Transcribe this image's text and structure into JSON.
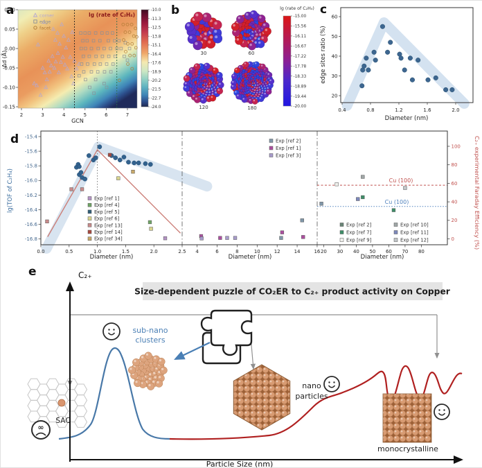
{
  "panel_a": {
    "label": "a",
    "title": "lg (rate of C₂H₄)",
    "xlabel": "GCN",
    "ylabel": "Δd (Å)",
    "xticks": [
      "2",
      "3",
      "4",
      "5",
      "6",
      "7"
    ],
    "yticks": [
      "0.10",
      "0.05",
      "0.00",
      "-0.05",
      "-0.10",
      "-0.15"
    ],
    "dashed_lines_gcn": [
      4.5,
      6.5
    ],
    "legend": [
      {
        "key": "corner",
        "label": "corner",
        "marker": "triangle",
        "color": "#b3a8d4"
      },
      {
        "key": "edge",
        "label": "edge",
        "marker": "square",
        "color": "#8a8f98"
      },
      {
        "key": "facet",
        "label": "facet",
        "marker": "circle",
        "color": "#b07a35"
      }
    ],
    "colorbar_ticks": [
      "-10.0",
      "-11.3",
      "-12.5",
      "-13.8",
      "-15.1",
      "-16.4",
      "-17.6",
      "-18.9",
      "-20.2",
      "-21.5",
      "-22.7",
      "-24.0"
    ],
    "scatter": {
      "corner": [
        [
          2.6,
          -0.09
        ],
        [
          2.72,
          -0.095
        ],
        [
          2.9,
          -0.12
        ],
        [
          2.78,
          0.01
        ],
        [
          3.0,
          -0.05
        ],
        [
          3.1,
          -0.062
        ],
        [
          3.15,
          -0.1
        ],
        [
          3.2,
          -0.08
        ],
        [
          3.28,
          -0.032
        ],
        [
          3.33,
          -0.06
        ],
        [
          3.4,
          -0.044
        ],
        [
          3.46,
          -0.02
        ],
        [
          3.5,
          0.05
        ],
        [
          3.55,
          -0.05
        ],
        [
          3.6,
          0.022
        ],
        [
          3.62,
          -0.034
        ],
        [
          3.7,
          0.04
        ],
        [
          3.72,
          -0.012
        ],
        [
          3.76,
          -0.062
        ],
        [
          3.8,
          0.012
        ],
        [
          3.86,
          -0.035
        ],
        [
          3.9,
          0.062
        ],
        [
          3.95,
          -0.022
        ],
        [
          4.0,
          0.032
        ],
        [
          4.05,
          -0.042
        ],
        [
          4.1,
          0.002
        ],
        [
          4.16,
          -0.052
        ],
        [
          4.22,
          0.022
        ],
        [
          4.3,
          -0.022
        ],
        [
          4.36,
          -0.072
        ],
        [
          4.4,
          0.042
        ],
        [
          4.5,
          -0.032
        ],
        [
          4.6,
          -0.052
        ],
        [
          4.72,
          -0.04
        ],
        [
          3.05,
          0.068
        ],
        [
          4.45,
          -0.09
        ]
      ],
      "edge": [
        [
          4.8,
          0.04
        ],
        [
          5.0,
          0.04
        ],
        [
          5.2,
          0.04
        ],
        [
          5.5,
          0.04
        ],
        [
          5.8,
          0.04
        ],
        [
          6.05,
          0.04
        ],
        [
          6.3,
          0.04
        ],
        [
          4.9,
          0.02
        ],
        [
          5.1,
          0.02
        ],
        [
          5.4,
          0.02
        ],
        [
          5.7,
          0.02
        ],
        [
          6.1,
          0.02
        ],
        [
          6.4,
          0.02
        ],
        [
          6.6,
          0.02
        ],
        [
          4.82,
          0.0
        ],
        [
          5.02,
          0.0
        ],
        [
          5.3,
          0.0
        ],
        [
          5.62,
          0.0
        ],
        [
          5.9,
          0.0
        ],
        [
          6.2,
          0.0
        ],
        [
          6.5,
          0.0
        ],
        [
          4.92,
          -0.02
        ],
        [
          5.2,
          -0.02
        ],
        [
          5.52,
          -0.02
        ],
        [
          5.82,
          -0.02
        ],
        [
          6.12,
          -0.02
        ],
        [
          6.42,
          -0.02
        ],
        [
          4.84,
          -0.04
        ],
        [
          5.12,
          -0.04
        ],
        [
          5.44,
          -0.04
        ],
        [
          5.72,
          -0.04
        ],
        [
          6.02,
          -0.04
        ],
        [
          6.32,
          -0.04
        ],
        [
          4.94,
          -0.06
        ],
        [
          5.3,
          -0.06
        ],
        [
          5.6,
          -0.06
        ],
        [
          5.92,
          -0.06
        ],
        [
          6.22,
          -0.06
        ],
        [
          5.02,
          -0.08
        ],
        [
          5.5,
          -0.08
        ],
        [
          5.9,
          -0.09
        ],
        [
          5.22,
          -0.1
        ],
        [
          4.72,
          -0.07
        ],
        [
          6.02,
          -0.1
        ],
        [
          5.42,
          -0.115
        ],
        [
          6.7,
          0.0
        ],
        [
          6.85,
          -0.02
        ],
        [
          7.0,
          -0.03
        ],
        [
          6.9,
          0.015
        ],
        [
          7.1,
          0.0
        ]
      ],
      "facet": [
        [
          6.8,
          0.062
        ],
        [
          7.0,
          0.062
        ],
        [
          7.2,
          0.062
        ],
        [
          7.38,
          0.052
        ],
        [
          6.9,
          0.042
        ],
        [
          7.1,
          0.042
        ],
        [
          7.3,
          0.032
        ],
        [
          7.44,
          0.03
        ],
        [
          6.82,
          0.022
        ],
        [
          7.02,
          0.012
        ],
        [
          7.22,
          0.012
        ],
        [
          7.4,
          0.002
        ],
        [
          6.92,
          -0.008
        ],
        [
          7.12,
          -0.018
        ],
        [
          7.32,
          -0.018
        ],
        [
          7.02,
          -0.04
        ],
        [
          7.22,
          -0.052
        ],
        [
          6.62,
          -0.082
        ]
      ]
    }
  },
  "panel_b": {
    "label": "b",
    "colorbar_title": "lg (rate of C₂H₄)",
    "colorbar_ticks": [
      "-15.00",
      "-15.56",
      "-16.11",
      "-16.67",
      "-17.22",
      "-17.78",
      "-18.33",
      "-18.89",
      "-19.44",
      "-20.00"
    ],
    "clusters": [
      {
        "label": "30",
        "atoms": 30
      },
      {
        "label": "60",
        "atoms": 60
      },
      {
        "label": "120",
        "atoms": 120
      },
      {
        "label": "180",
        "atoms": 180
      }
    ]
  },
  "panel_c": {
    "label": "c",
    "chart_data": {
      "type": "scatter",
      "xlabel": "Diameter (nm)",
      "ylabel": "edge sites ratio (%)",
      "xticks": [
        "0.4",
        "0.8",
        "1.2",
        "1.6",
        "2.0"
      ],
      "yticks": [
        "20",
        "30",
        "40",
        "50",
        "60"
      ],
      "points": [
        [
          0.68,
          25
        ],
        [
          0.69,
          33
        ],
        [
          0.71,
          35
        ],
        [
          0.74,
          39
        ],
        [
          0.77,
          33
        ],
        [
          0.85,
          42
        ],
        [
          0.87,
          38
        ],
        [
          0.97,
          55
        ],
        [
          1.04,
          42
        ],
        [
          1.08,
          47
        ],
        [
          1.21,
          41
        ],
        [
          1.23,
          39
        ],
        [
          1.28,
          33
        ],
        [
          1.36,
          39
        ],
        [
          1.39,
          28
        ],
        [
          1.47,
          38
        ],
        [
          1.61,
          28
        ],
        [
          1.72,
          29
        ],
        [
          1.86,
          23
        ],
        [
          1.95,
          23
        ]
      ],
      "band": [
        [
          0.47,
          15
        ],
        [
          0.99,
          57
        ],
        [
          2.12,
          16
        ]
      ],
      "point_color": "#3d6690",
      "band_color": "#c9dbec"
    }
  },
  "panel_d": {
    "label": "d",
    "chart_data": {
      "type": "scatter",
      "ylabel_left": "lg(TOF of C₂H₄)",
      "ylabel_right": "C₂₊ experimental Faraday Efficiency (%)",
      "xlabel": "Diameter (nm)",
      "yticks_left": [
        "-15.4",
        "-15.6",
        "-15.8",
        "-16.0",
        "-16.2",
        "-16.4",
        "-16.6",
        "-16.8"
      ],
      "yticks_right": [
        "0",
        "20",
        "40",
        "60",
        "80",
        "100"
      ],
      "segments": [
        {
          "domain": [
            0,
            2.5
          ],
          "ticks": [
            "0.0",
            "0.5",
            "1.0",
            "1.5",
            "2.0",
            "2.5"
          ]
        },
        {
          "domain": [
            2.5,
            16
          ],
          "ticks": [
            "4",
            "6",
            "8",
            "10",
            "12",
            "14",
            "16"
          ]
        },
        {
          "domain": [
            16,
            96
          ],
          "ticks": [
            "20",
            "30",
            "40",
            "50",
            "60",
            "70",
            "80"
          ]
        }
      ],
      "vline_dotted_at": 1.0,
      "colors": {
        "tof": "#33628e",
        "band": "#c7d9ea",
        "trend": "#cc7f78",
        "ref1": "#b594c6",
        "ref4": "#6fa565",
        "ref5": "#2f5d78",
        "ref6": "#d8d48e",
        "ref13": "#c98b8b",
        "ref14": "#a9493f",
        "ref34": "#c8a969",
        "ref1m": "#ac4f9f",
        "ref2m": "#8097a9",
        "ref3": "#a79bcb",
        "ref2r": "#6a8577",
        "ref7": "#3e8e68",
        "ref9": "#f0f0ec",
        "ref10": "#9fa6a6",
        "ref11": "#7d88bb",
        "ref12": "#c2c6c8",
        "cu_red": "#c0504d",
        "cu_blue": "#4f81bd"
      },
      "tof_points": [
        [
          0.63,
          -15.82
        ],
        [
          0.66,
          -15.78
        ],
        [
          0.68,
          -15.81
        ],
        [
          0.68,
          -15.92
        ],
        [
          0.71,
          -15.89
        ],
        [
          0.73,
          -15.96
        ],
        [
          0.78,
          -15.98
        ],
        [
          0.85,
          -15.66
        ],
        [
          0.93,
          -15.72
        ],
        [
          0.97,
          -15.69
        ],
        [
          1.04,
          -15.54
        ],
        [
          1.25,
          -15.66
        ],
        [
          1.32,
          -15.69
        ],
        [
          1.4,
          -15.72
        ],
        [
          1.47,
          -15.68
        ],
        [
          1.55,
          -15.75
        ],
        [
          1.65,
          -15.76
        ],
        [
          1.73,
          -15.76
        ],
        [
          1.85,
          -15.77
        ],
        [
          1.94,
          -15.78
        ]
      ],
      "tof_squares": [
        {
          "ref": "ref13",
          "d": 0.11,
          "v": -16.56
        },
        {
          "ref": "ref13",
          "d": 0.54,
          "v": -16.12
        },
        {
          "ref": "ref13",
          "d": 0.73,
          "v": -16.12
        },
        {
          "ref": "ref14",
          "d": 1.22,
          "v": -15.65
        },
        {
          "ref": "ref6",
          "d": 1.37,
          "v": -15.97
        },
        {
          "ref": "ref34",
          "d": 1.63,
          "v": -15.88
        },
        {
          "ref": "ref4",
          "d": 1.93,
          "v": -16.57
        },
        {
          "ref": "ref6",
          "d": 1.95,
          "v": -16.66
        },
        {
          "ref": "ref1",
          "d": 2.2,
          "v": -16.79
        }
      ],
      "fe_points": [
        {
          "ref": "ref1m",
          "d": 4.4,
          "fe": 3
        },
        {
          "ref": "ref3",
          "d": 4.45,
          "fe": 0.5
        },
        {
          "ref": "ref1m",
          "d": 6.3,
          "fe": 1
        },
        {
          "ref": "ref3",
          "d": 7.0,
          "fe": 1
        },
        {
          "ref": "ref3",
          "d": 7.8,
          "fe": 1
        },
        {
          "ref": "ref2m",
          "d": 12.4,
          "fe": 1
        },
        {
          "ref": "ref1m",
          "d": 12.5,
          "fe": 7
        },
        {
          "ref": "ref2m",
          "d": 14.5,
          "fe": 20
        },
        {
          "ref": "ref1m",
          "d": 14.6,
          "fe": 2
        },
        {
          "ref": "ref2m",
          "d": 18.6,
          "fe": 38
        },
        {
          "ref": "ref9",
          "d": 28,
          "fe": 59
        },
        {
          "ref": "ref11",
          "d": 41,
          "fe": 43
        },
        {
          "ref": "ref7",
          "d": 44,
          "fe": 45
        },
        {
          "ref": "ref10",
          "d": 44,
          "fe": 67
        },
        {
          "ref": "ref7",
          "d": 63,
          "fe": 31
        },
        {
          "ref": "ref12",
          "d": 70,
          "fe": 55
        }
      ],
      "trend_line": [
        [
          0.12,
          -16.77
        ],
        [
          1.0,
          -15.58
        ],
        [
          2.47,
          -16.72
        ]
      ],
      "band": [
        [
          0.1,
          -16.93
        ],
        [
          1.02,
          -15.54
        ],
        [
          2.45,
          -16.08
        ]
      ],
      "cu100_red": {
        "label": "Cu (100)",
        "fe": 58
      },
      "cu100_blue": {
        "label": "Cu (100)",
        "fe": 35
      },
      "legend_left": [
        [
          "ref1",
          "Exp [ref 1]"
        ],
        [
          "ref4",
          "Exp [ref 4]"
        ],
        [
          "ref5",
          "Exp [ref 5]"
        ],
        [
          "ref6",
          "Exp [ref 6]"
        ],
        [
          "ref13",
          "Exp [ref 13]"
        ],
        [
          "ref14",
          "Exp [ref 14]"
        ],
        [
          "ref34",
          "Exp [ref 34]"
        ]
      ],
      "legend_mid": [
        [
          "ref2m",
          "Exp [ref 2]"
        ],
        [
          "ref1m",
          "Exp [ref 1]"
        ],
        [
          "ref3",
          "Exp [ref 3]"
        ]
      ],
      "legend_right_col1": [
        [
          "ref2r",
          "Exp [ref 2]"
        ],
        [
          "ref7",
          "Exp [ref 7]"
        ],
        [
          "ref9",
          "Exp [ref 9]"
        ]
      ],
      "legend_right_col2": [
        [
          "ref10",
          "Exp [ref 10]"
        ],
        [
          "ref11",
          "Exp [ref 11]"
        ],
        [
          "ref12",
          "Exp [ref 12]"
        ]
      ]
    }
  },
  "panel_e": {
    "label": "e",
    "banner": "Size-dependent puzzle of CO₂ER to C₂₊ product activity on Copper",
    "yaxis_label": "C₂₊",
    "xaxis_label": "Particle Size (nm)",
    "annotations": {
      "sac": "SAC",
      "sub_nano": [
        "sub-nano",
        "clusters"
      ],
      "nano": [
        "nano",
        "particles"
      ],
      "mono": "monocrystalline"
    },
    "colors": {
      "blue_curve": "#4878a8",
      "red_curve": "#b02020",
      "copper": "#dda47e",
      "banner_bg": "#e4e4e4",
      "annotation_blue": "#4a7fb5",
      "connector": "#909090"
    }
  }
}
